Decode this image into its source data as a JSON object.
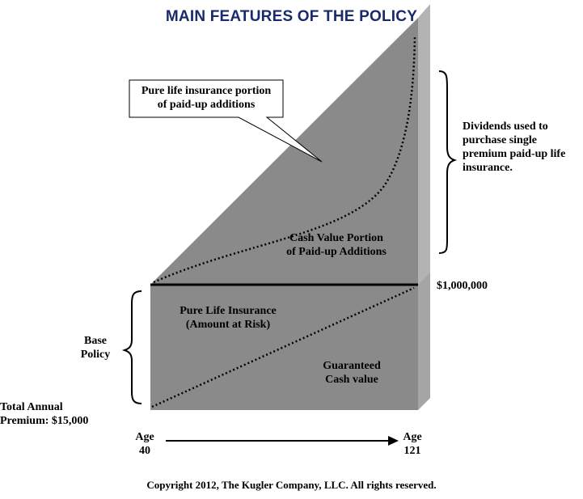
{
  "title": "MAIN FEATURES OF THE POLICY",
  "callout": {
    "line1": "Pure life insurance portion",
    "line2": "of paid-up additions"
  },
  "dividends": {
    "line1": "Dividends used to",
    "line2": "purchase single",
    "line3": "premium paid-up life",
    "line4": "insurance."
  },
  "cash_value_portion": {
    "line1": "Cash Value Portion",
    "line2": "of Paid-up Additions"
  },
  "face_amount": "$1,000,000",
  "pure_life": {
    "line1": "Pure Life Insurance",
    "line2": "(Amount at Risk)"
  },
  "guaranteed": {
    "line1": "Guaranteed",
    "line2": "Cash value"
  },
  "base_policy": {
    "line1": "Base",
    "line2": "Policy"
  },
  "premium": {
    "line1": "Total Annual",
    "line2": "Premium: $15,000"
  },
  "age_start": {
    "line1": "Age",
    "line2": "40"
  },
  "age_end": {
    "line1": "Age",
    "line2": "121"
  },
  "copyright": "Copyright 2012, The Kugler Company, LLC.  All rights reserved.",
  "colors": {
    "block_front": "#8a8a8a",
    "block_side": "#b3b3b3",
    "title": "#1a2a6c"
  }
}
